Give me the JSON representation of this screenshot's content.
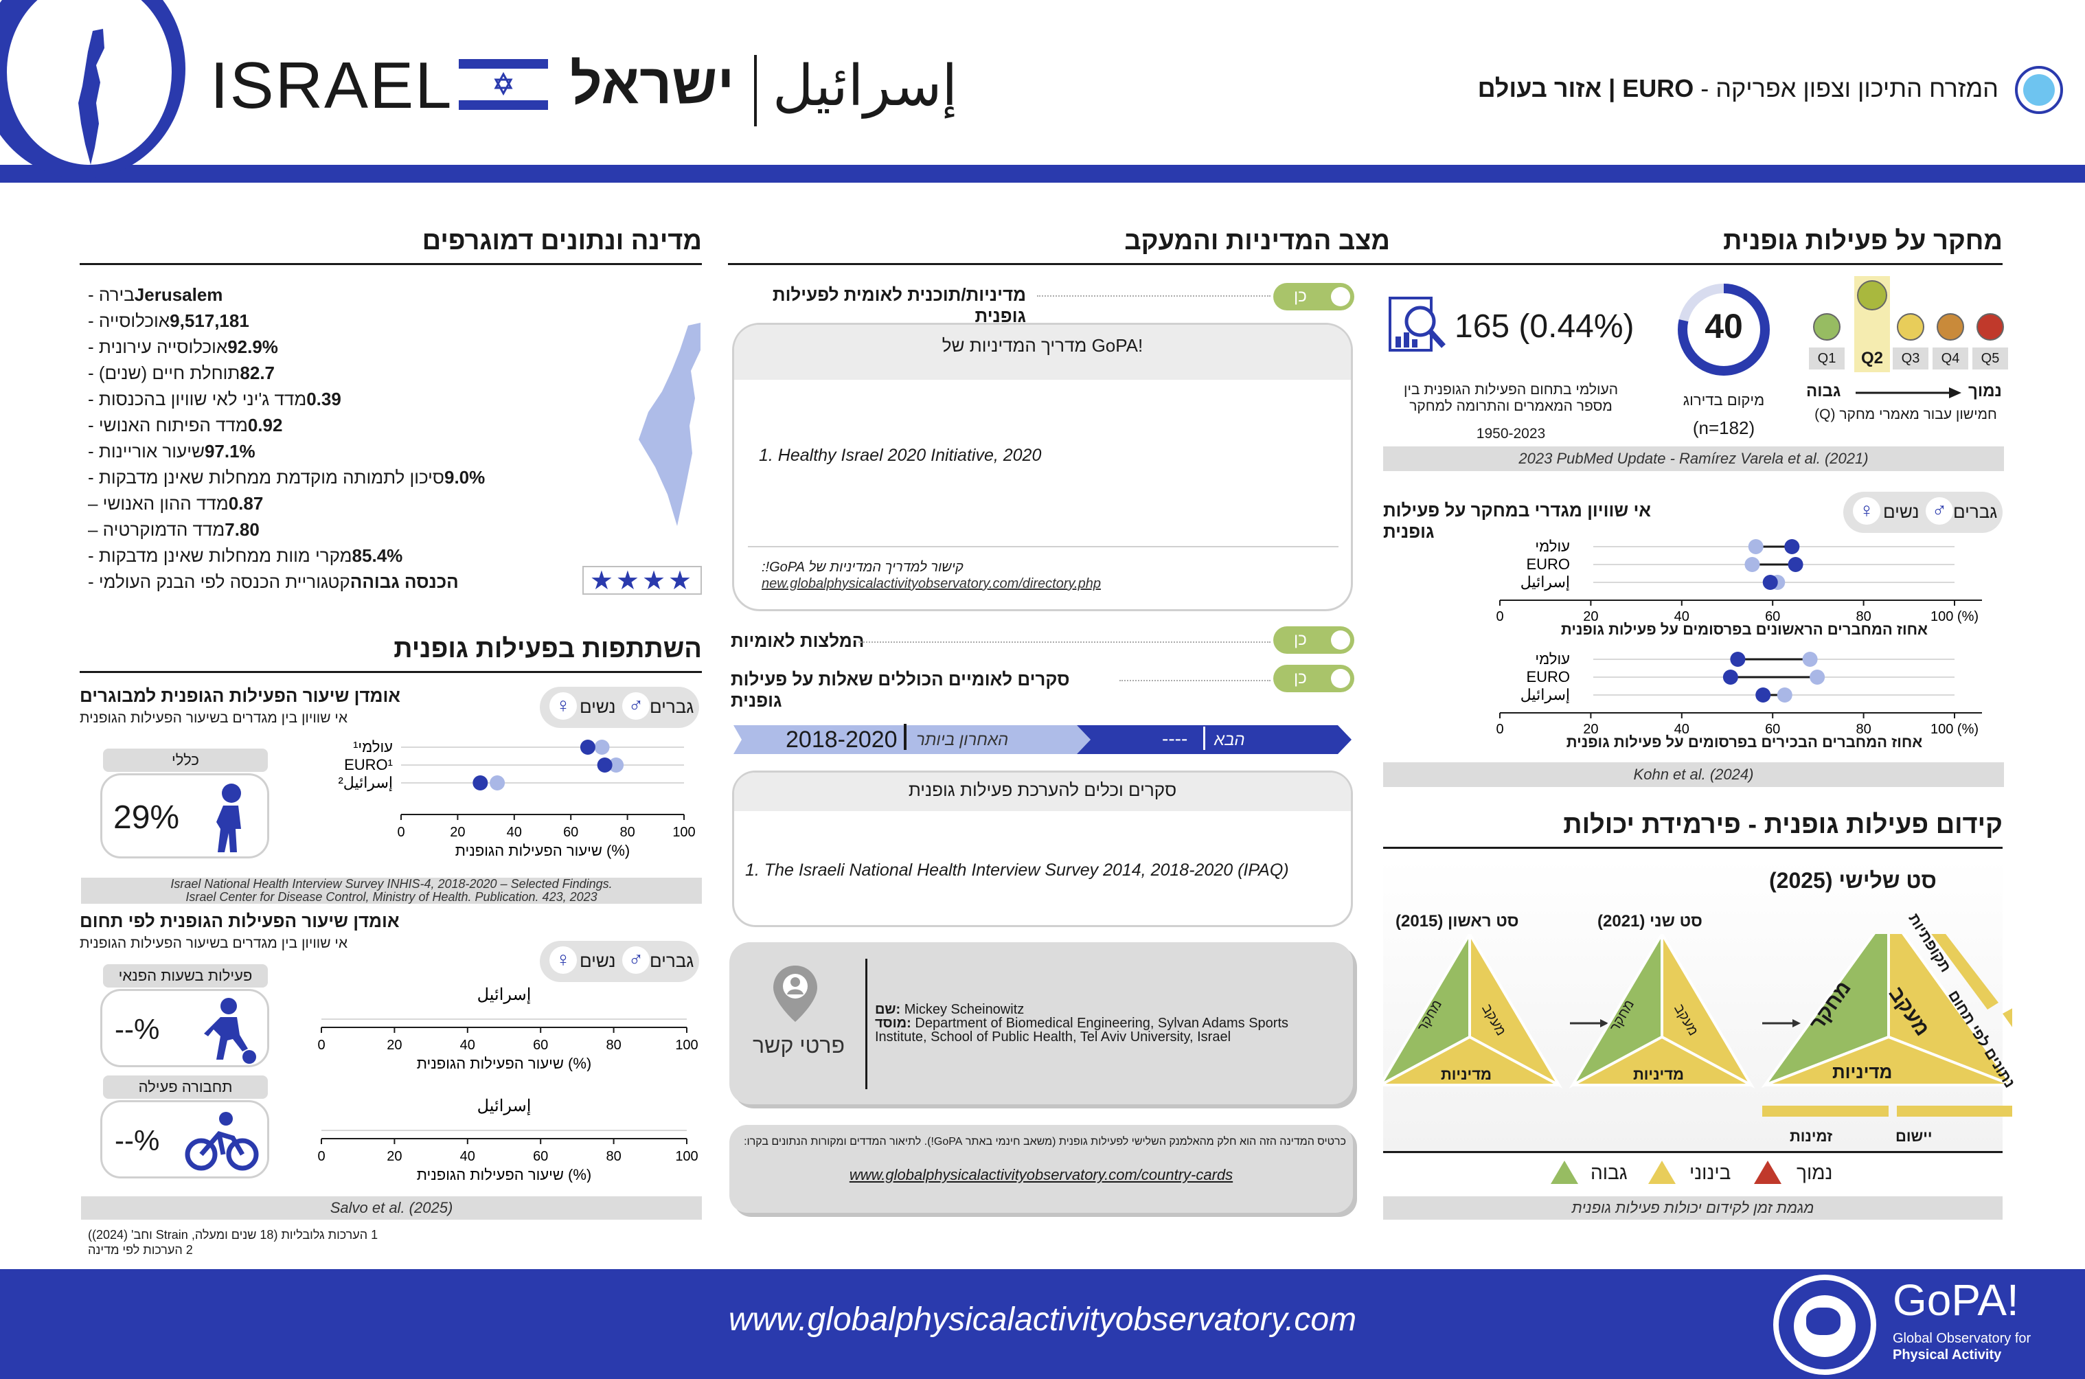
{
  "header": {
    "country_latin": "ISRAEL",
    "country_hebrew": "ישראל",
    "country_arabic": "إسرائيل",
    "region_text": "המזרח התיכון וצפון אפריקה - ",
    "region_code": "EURO",
    "region_suffix": " | אזור בעולם"
  },
  "demographics": {
    "title": "מדינה ונתונים דמוגרפים",
    "rows": [
      {
        "value": "Jerusalem",
        "label": "בירה - "
      },
      {
        "value": "9,517,181",
        "label": "אוכלוסייה - "
      },
      {
        "value": "92.9%",
        "label": "אוכלוסייה עירונית - "
      },
      {
        "value": "82.7",
        "label": "תוחלת חיים (שנים) - "
      },
      {
        "value": "0.39",
        "label": "מדד ג'יני לאי שוויון בהכנסות - "
      },
      {
        "value": "0.92",
        "label": "מדד הפיתוח האנושי - "
      },
      {
        "value": "97.1%",
        "label": "שיעור אוריינות - "
      },
      {
        "value": "9.0%",
        "label": "סיכון לתמותה מוקדמת ממחלות שאינן מדבקות - "
      },
      {
        "value": "0.87",
        "label": "מדד ההון האנושי – "
      },
      {
        "value": "7.80",
        "label": "מדד הדמוקרטיה – "
      },
      {
        "value": "85.4%",
        "label": "מקרי מוות ממחלות שאינן מדבקות - "
      },
      {
        "value": "הכנסה גבוהה",
        "label": "קטגוריית הכנסה לפי הבנק העולמי - "
      }
    ],
    "stars": "★★★★"
  },
  "participation": {
    "title": "השתתפות בפעילות גופנית",
    "adult_title": "אומדן שיעור הפעילות הגופנית למבוגרים",
    "adult_sub": "אי שוויון בין מגדרים בשיעור הפעילות הגופנית",
    "men": "גברים",
    "women": "נשים",
    "overall_label": "כללי",
    "overall_value": "29%",
    "rows": [
      {
        "label": "עולמי¹",
        "men": 66,
        "women": 71
      },
      {
        "label": "EURO¹",
        "men": 72,
        "women": 76
      },
      {
        "label": "ישראל²",
        "men": 28,
        "women": 34
      }
    ],
    "rows_arabic_israel": "إسرائيل",
    "axis_ticks": [
      "0",
      "20",
      "40",
      "60",
      "80",
      "100"
    ],
    "axis_label": "(%) שיעור הפעילות הגופנית",
    "source_1": "Israel National Health Interview Survey INHIS-4, 2018-2020 – Selected Findings.",
    "source_2": "Israel Center for Disease Control, Ministry of Health. Publication. 423, 2023",
    "domain_title": "אומדן שיעור הפעילות הגופנית לפי תחום",
    "domain_sub": "אי שוויון בין מגדרים בשיעור הפעילות הגופנית",
    "leisure_label": "פעילות בשעות הפנאי",
    "leisure_value": "--%",
    "transport_label": "תחבורה פעילה",
    "transport_value": "--%",
    "domain_row_label": "إسرائيل",
    "salvo": "Salvo et al. (2025)",
    "footnote_1": "1 הערכות גלובליות (18 שנים ומעלה, Strain וחב' (2024))",
    "footnote_2": "2 הערכות לפי מדינה"
  },
  "policy": {
    "title": "מצב המדיניות והמעקב",
    "national_policy": "מדיניות/תוכנית לאומית לפעילות גופנית",
    "yes": "כן",
    "guide_title": "מדריך המדיניות של GoPA!",
    "guide_item": "1. Healthy Israel 2020 Initiative, 2020",
    "guide_link_label": "קישור למדריך המדיניות של GoPA!:",
    "guide_link": "new.globalphysicalactivityobservatory.com/directory.php",
    "recommendations": "המלצות לאומיות",
    "surveys": "סקרים לאומיים הכוללים שאלות על פעילות גופנית",
    "timeline_last_label": "האחרון ביותר",
    "timeline_last_value": "2018-2020",
    "timeline_next_label": "הבא",
    "timeline_next_value": "----",
    "tools_title": "סקרים וכלים להערכת פעילות גופנית",
    "tools_item": "1. The Israeli National Health Interview Survey 2014, 2018-2020 (IPAQ)",
    "contact_label": "פרטי קשר",
    "contact_name_key": "שם:",
    "contact_name": "Mickey Scheinowitz",
    "contact_inst_key": "מוסד:",
    "contact_inst": "Department of Biomedical Engineering, Sylvan Adams Sports Institute, School of Public Health, Tel Aviv University, Israel",
    "card_note": "כרטיס המדינה הזה הוא חלק מהאלמנק השלישי לפעילות גופנית (משאב חינמי באתר GoPA!). לתיאור המדדים ומקורות הנתונים בקרו:",
    "card_link": "www.globalphysicalactivityobservatory.com/country-cards"
  },
  "research": {
    "title": "מחקר על פעילות גופנית",
    "pubs": "165 (0.44%)",
    "pubs_desc_1": "העולמי בתחום הפעילות הגופנית בין",
    "pubs_desc_2": "מספר המאמרים והתרומה למחקר",
    "pubs_years": "1950-2023",
    "rank": "40",
    "rank_label": "מיקום בדירוג",
    "rank_n": "(n=182)",
    "quintiles": [
      "Q1",
      "Q2",
      "Q3",
      "Q4",
      "Q5"
    ],
    "q_high": "גבוה",
    "q_low": "נמוך",
    "q_desc": "חמישון עבור מאמרי מחקר (Q)",
    "source_1": "2023 PubMed Update - Ramírez Varela et al. (2021)",
    "gender_title": "אי שוויון מגדרי במחקר על פעילות גופנית",
    "men": "גברים",
    "women": "נשים",
    "gchart1_rows": [
      {
        "label": "עולמי",
        "women": 45,
        "men": 55
      },
      {
        "label": "EURO",
        "women": 44,
        "men": 56
      },
      {
        "label": "إسرائيل",
        "women": 51,
        "men": 49
      }
    ],
    "gchart1_xlabel": "אחוז המחברים הראשונים בפרסומים על פעילות גופנית",
    "gchart2_rows": [
      {
        "label": "עולמי",
        "women": 60,
        "men": 40
      },
      {
        "label": "EURO",
        "women": 62,
        "men": 38
      },
      {
        "label": "إسرائيل",
        "women": 53,
        "men": 47
      }
    ],
    "gchart2_xlabel": "אחוז המחברים הבכירים בפרסומים על פעילות גופנית",
    "axis_ticks": [
      "0",
      "20",
      "40",
      "60",
      "80",
      "100 (%)"
    ],
    "kohn": "Kohn et al. (2024)"
  },
  "pyramid": {
    "title": "קידום פעילות גופנית - פירמידת יכולות",
    "set3": "סט שלישי (2025)",
    "set2": "סט שני (2021)",
    "set1": "סט ראשון (2015)",
    "research": "מחקר",
    "monitoring": "מעקב",
    "policy": "מדיניות",
    "periodicity": "תקופתיות",
    "by_domain": "נתונים לפי תחום",
    "availability": "זמינות",
    "implementation": "יישום",
    "legend_high": "גבוה",
    "legend_mid": "בינוני",
    "legend_low": "נמוך",
    "legend_caption": "מגמת זמן לקידום יכולות פעילות גופנית",
    "colors": {
      "high": "#97bc62",
      "mid": "#e8cd5a",
      "low": "#c0392b"
    }
  },
  "footer": {
    "url": "www.globalphysicalactivityobservatory.com",
    "logo": "GoPA!",
    "logo_sub_1": "Global Observatory for",
    "logo_sub_2": "Physical Activity"
  },
  "colors": {
    "primary": "#2a3aad",
    "men": "#2a3aad",
    "women": "#a9b7e6"
  }
}
